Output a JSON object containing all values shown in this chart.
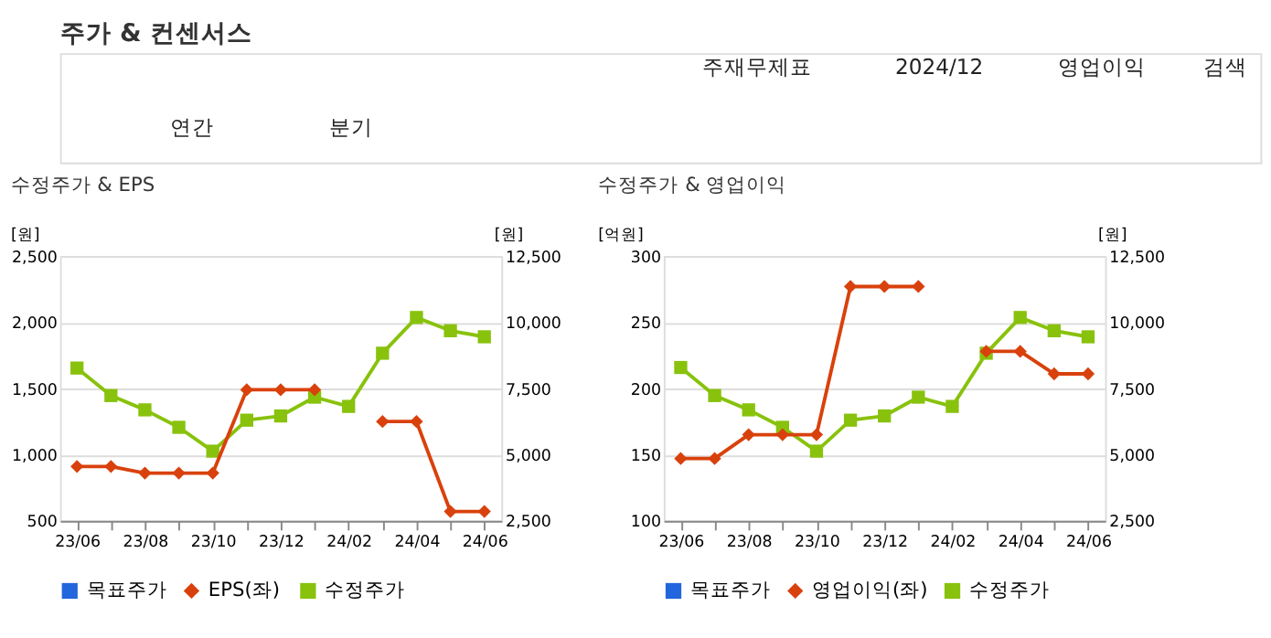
{
  "chart_data": [
    {
      "type": "other",
      "title": "주가 & 컨센서스",
      "annotations": [
        "주재무제표",
        "2024/12",
        "영업이익",
        "검색",
        "연간",
        "분기"
      ]
    },
    {
      "type": "line",
      "title": "수정주가 & EPS",
      "ylabel": "[원]",
      "y2label": "[원]",
      "categories": [
        "23/06",
        null,
        "23/08",
        null,
        "23/10",
        null,
        "23/12",
        null,
        "24/02",
        null,
        "24/04",
        null,
        "24/06"
      ],
      "series": [
        {
          "name": "목표주가",
          "color": "#2266dd",
          "marker": "square",
          "values": [
            null,
            null,
            null,
            null,
            null,
            null,
            null,
            null,
            null,
            null,
            null,
            null,
            null
          ]
        },
        {
          "name": "EPS(좌)",
          "color": "#d9410c",
          "marker": "diamond",
          "values": [
            910,
            910,
            860,
            860,
            860,
            1490,
            1490,
            1490,
            null,
            1250,
            1250,
            570,
            570
          ]
        },
        {
          "name": "수정주가",
          "color": "#88c20c",
          "marker": "square",
          "axis": "y2",
          "values": [
            8270,
            7230,
            6690,
            6030,
            5130,
            6300,
            6460,
            7170,
            6820,
            8830,
            10180,
            9680,
            9450
          ]
        }
      ],
      "ylim": [
        500,
        2500
      ],
      "yticks": [
        500,
        {
          "value": 1000,
          "label": "1,000"
        },
        {
          "value": 1500,
          "label": "1,500"
        },
        {
          "value": 2000,
          "label": "2,000"
        },
        {
          "value": 2500,
          "label": "2,500"
        }
      ],
      "y2lim": [
        2500,
        12500
      ],
      "y2ticks": [
        {
          "value": 2500,
          "label": "2,500"
        },
        {
          "value": 5000,
          "label": "5,000"
        },
        {
          "value": 7500,
          "label": "7,500"
        },
        {
          "value": 10000,
          "label": "10,000"
        },
        {
          "value": 12500,
          "label": "12,500"
        }
      ],
      "grid": "y",
      "legend": "bottom"
    },
    {
      "type": "line",
      "title": "수정주가 & 영업이익",
      "ylabel": "[억원]",
      "y2label": "[원]",
      "categories": [
        "23/06",
        null,
        "23/08",
        null,
        "23/10",
        null,
        "23/12",
        null,
        "24/02",
        null,
        "24/04",
        null,
        "24/06"
      ],
      "series": [
        {
          "name": "목표주가",
          "color": "#2266dd",
          "marker": "square",
          "values": [
            null,
            null,
            null,
            null,
            null,
            null,
            null,
            null,
            null,
            null,
            null,
            null,
            null
          ]
        },
        {
          "name": "영업이익(좌)",
          "color": "#d9410c",
          "marker": "diamond",
          "values": [
            147,
            147,
            165,
            165,
            165,
            277,
            277,
            277,
            null,
            228,
            228,
            211,
            211
          ]
        },
        {
          "name": "수정주가",
          "color": "#88c20c",
          "marker": "square",
          "axis": "y2",
          "values": [
            8290,
            7230,
            6690,
            6030,
            5130,
            6300,
            6460,
            7170,
            6820,
            8830,
            10180,
            9680,
            9450
          ]
        }
      ],
      "ylim": [
        100,
        300
      ],
      "yticks": [
        100,
        150,
        200,
        250,
        300
      ],
      "y2lim": [
        2500,
        12500
      ],
      "y2ticks": [
        {
          "value": 2500,
          "label": "2,500"
        },
        {
          "value": 5000,
          "label": "5,000"
        },
        {
          "value": 7500,
          "label": "7,500"
        },
        {
          "value": 10000,
          "label": "10,000"
        },
        {
          "value": 12500,
          "label": "12,500"
        }
      ],
      "grid": "y",
      "legend": "bottom"
    }
  ]
}
